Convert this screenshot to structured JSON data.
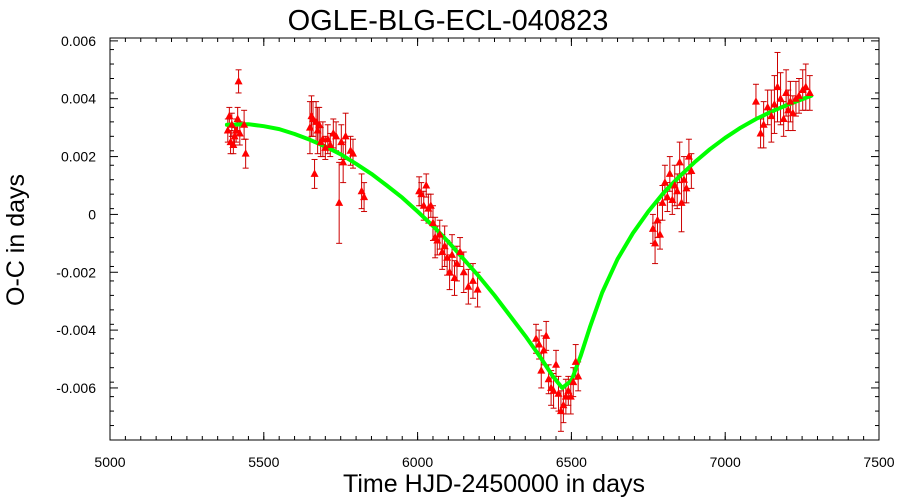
{
  "chart_data": {
    "type": "scatter",
    "title": "OGLE-BLG-ECL-040823",
    "xlabel": "Time HJD-2450000 in days",
    "ylabel": "O-C in days",
    "xlim": [
      5000,
      7500
    ],
    "ylim": [
      -0.0078,
      0.0061
    ],
    "x_ticks": [
      5000,
      5500,
      6000,
      6500,
      7000,
      7500
    ],
    "x_tick_labels": [
      "5000",
      "5500",
      "6000",
      "6500",
      "7000",
      "7500"
    ],
    "y_ticks": [
      -0.006,
      -0.004,
      -0.002,
      0,
      0.002,
      0.004,
      0.006
    ],
    "y_tick_labels": [
      "-0.006",
      "-0.004",
      "-0.002",
      "0",
      "0.002",
      "0.004",
      "0.006"
    ],
    "grid": false,
    "legend": "none",
    "colors": {
      "points": "#ff0000",
      "errorbars": "#cc0000",
      "fit": "#00ff00",
      "frame": "#000000"
    },
    "series": [
      {
        "kind": "points-with-errors",
        "points": [
          [
            5383,
            0.0029,
            0.0004
          ],
          [
            5388,
            0.0034,
            0.0003
          ],
          [
            5392,
            0.0025,
            0.0004
          ],
          [
            5396,
            0.0031,
            0.0004
          ],
          [
            5401,
            0.0024,
            0.0003
          ],
          [
            5405,
            0.0027,
            0.0003
          ],
          [
            5410,
            0.0029,
            0.0004
          ],
          [
            5415,
            0.0033,
            0.0004
          ],
          [
            5418,
            0.0046,
            0.0004
          ],
          [
            5422,
            0.0028,
            0.0004
          ],
          [
            5436,
            0.0031,
            0.0005
          ],
          [
            5441,
            0.0021,
            0.0005
          ],
          [
            5650,
            0.003,
            0.0009
          ],
          [
            5655,
            0.0034,
            0.0007
          ],
          [
            5660,
            0.0033,
            0.0006
          ],
          [
            5665,
            0.0014,
            0.0005
          ],
          [
            5670,
            0.0032,
            0.0007
          ],
          [
            5675,
            0.0029,
            0.0008
          ],
          [
            5680,
            0.0031,
            0.0006
          ],
          [
            5685,
            0.0025,
            0.0005
          ],
          [
            5692,
            0.0026,
            0.0006
          ],
          [
            5700,
            0.0023,
            0.0004
          ],
          [
            5708,
            0.0026,
            0.0005
          ],
          [
            5716,
            0.0024,
            0.0004
          ],
          [
            5726,
            0.0028,
            0.0005
          ],
          [
            5735,
            0.0027,
            0.0005
          ],
          [
            5745,
            0.0004,
            0.0014
          ],
          [
            5752,
            0.0025,
            0.0006
          ],
          [
            5758,
            0.0018,
            0.0007
          ],
          [
            5766,
            0.0027,
            0.0008
          ],
          [
            5782,
            0.0022,
            0.0005
          ],
          [
            5790,
            0.0021,
            0.0005
          ],
          [
            5818,
            0.0008,
            0.0006
          ],
          [
            5826,
            0.0006,
            0.0005
          ],
          [
            6005,
            0.0008,
            0.0005
          ],
          [
            6012,
            0.0007,
            0.0004
          ],
          [
            6020,
            0.0003,
            0.0005
          ],
          [
            6028,
            0.001,
            0.0004
          ],
          [
            6035,
            0.0002,
            0.0005
          ],
          [
            6043,
            0.0003,
            0.0004
          ],
          [
            6050,
            -0.0003,
            0.0006
          ],
          [
            6057,
            -0.0008,
            0.0007
          ],
          [
            6064,
            -0.0009,
            0.0005
          ],
          [
            6072,
            -0.0007,
            0.0005
          ],
          [
            6080,
            -0.0013,
            0.0006
          ],
          [
            6088,
            -0.0011,
            0.0007
          ],
          [
            6096,
            -0.0015,
            0.0006
          ],
          [
            6104,
            -0.002,
            0.0006
          ],
          [
            6112,
            -0.0014,
            0.0007
          ],
          [
            6120,
            -0.0022,
            0.0006
          ],
          [
            6128,
            -0.0017,
            0.0006
          ],
          [
            6138,
            -0.0013,
            0.0005
          ],
          [
            6150,
            -0.002,
            0.0007
          ],
          [
            6165,
            -0.0025,
            0.0006
          ],
          [
            6180,
            -0.0023,
            0.0006
          ],
          [
            6195,
            -0.0026,
            0.0006
          ],
          [
            6385,
            -0.0043,
            0.0005
          ],
          [
            6395,
            -0.0045,
            0.0005
          ],
          [
            6402,
            -0.0054,
            0.0006
          ],
          [
            6410,
            -0.0047,
            0.0005
          ],
          [
            6418,
            -0.0042,
            0.0005
          ],
          [
            6426,
            -0.0057,
            0.0005
          ],
          [
            6434,
            -0.006,
            0.0006
          ],
          [
            6442,
            -0.0061,
            0.0006
          ],
          [
            6450,
            -0.0052,
            0.0005
          ],
          [
            6458,
            -0.0062,
            0.0006
          ],
          [
            6466,
            -0.0068,
            0.0007
          ],
          [
            6474,
            -0.0066,
            0.0006
          ],
          [
            6482,
            -0.0063,
            0.0006
          ],
          [
            6490,
            -0.0061,
            0.0005
          ],
          [
            6498,
            -0.0063,
            0.0006
          ],
          [
            6506,
            -0.0058,
            0.0005
          ],
          [
            6514,
            -0.0051,
            0.0006
          ],
          [
            6522,
            -0.0056,
            0.0005
          ],
          [
            6765,
            -0.0005,
            0.0005
          ],
          [
            6772,
            -0.001,
            0.0007
          ],
          [
            6780,
            -0.0002,
            0.0006
          ],
          [
            6788,
            -0.0007,
            0.0005
          ],
          [
            6796,
            0.0004,
            0.0006
          ],
          [
            6804,
            0.0011,
            0.0006
          ],
          [
            6812,
            0.0006,
            0.0005
          ],
          [
            6820,
            0.0014,
            0.0006
          ],
          [
            6828,
            0.0005,
            0.0005
          ],
          [
            6836,
            0.001,
            0.0007
          ],
          [
            6844,
            0.0008,
            0.0006
          ],
          [
            6852,
            0.0018,
            0.0007
          ],
          [
            6858,
            0.0004,
            0.001
          ],
          [
            6866,
            0.0012,
            0.0008
          ],
          [
            6874,
            0.0009,
            0.0005
          ],
          [
            6882,
            0.002,
            0.0006
          ],
          [
            6890,
            0.0015,
            0.0006
          ],
          [
            7100,
            0.0039,
            0.0006
          ],
          [
            7115,
            0.0028,
            0.0005
          ],
          [
            7125,
            0.0031,
            0.0008
          ],
          [
            7138,
            0.0037,
            0.0006
          ],
          [
            7150,
            0.0034,
            0.0009
          ],
          [
            7160,
            0.0038,
            0.001
          ],
          [
            7170,
            0.0044,
            0.0012
          ],
          [
            7180,
            0.004,
            0.0009
          ],
          [
            7190,
            0.0033,
            0.0006
          ],
          [
            7198,
            0.0042,
            0.0008
          ],
          [
            7205,
            0.0036,
            0.0007
          ],
          [
            7212,
            0.0039,
            0.0007
          ],
          [
            7220,
            0.0035,
            0.0006
          ],
          [
            7230,
            0.004,
            0.0006
          ],
          [
            7240,
            0.0041,
            0.0006
          ],
          [
            7252,
            0.0043,
            0.0007
          ],
          [
            7262,
            0.0044,
            0.0008
          ],
          [
            7275,
            0.0042,
            0.0006
          ]
        ]
      },
      {
        "kind": "fit-curve",
        "points": [
          [
            5380,
            0.0031
          ],
          [
            5450,
            0.00312
          ],
          [
            5500,
            0.00305
          ],
          [
            5550,
            0.00295
          ],
          [
            5600,
            0.00278
          ],
          [
            5650,
            0.00258
          ],
          [
            5700,
            0.00235
          ],
          [
            5750,
            0.00208
          ],
          [
            5800,
            0.00175
          ],
          [
            5850,
            0.0014
          ],
          [
            5900,
            0.001
          ],
          [
            5950,
            0.00058
          ],
          [
            6000,
            0.0001
          ],
          [
            6050,
            -0.0004
          ],
          [
            6100,
            -0.00095
          ],
          [
            6150,
            -0.00155
          ],
          [
            6200,
            -0.00215
          ],
          [
            6250,
            -0.0028
          ],
          [
            6300,
            -0.0035
          ],
          [
            6350,
            -0.0042
          ],
          [
            6400,
            -0.00495
          ],
          [
            6440,
            -0.0056
          ],
          [
            6470,
            -0.006
          ],
          [
            6500,
            -0.00575
          ],
          [
            6530,
            -0.0049
          ],
          [
            6560,
            -0.0039
          ],
          [
            6600,
            -0.0027
          ],
          [
            6650,
            -0.00155
          ],
          [
            6700,
            -0.00065
          ],
          [
            6750,
            0.0001
          ],
          [
            6800,
            0.00075
          ],
          [
            6850,
            0.0013
          ],
          [
            6900,
            0.0018
          ],
          [
            6950,
            0.00225
          ],
          [
            7000,
            0.00265
          ],
          [
            7050,
            0.003
          ],
          [
            7100,
            0.0033
          ],
          [
            7150,
            0.00355
          ],
          [
            7200,
            0.00378
          ],
          [
            7250,
            0.00398
          ],
          [
            7280,
            0.0041
          ]
        ]
      }
    ]
  }
}
